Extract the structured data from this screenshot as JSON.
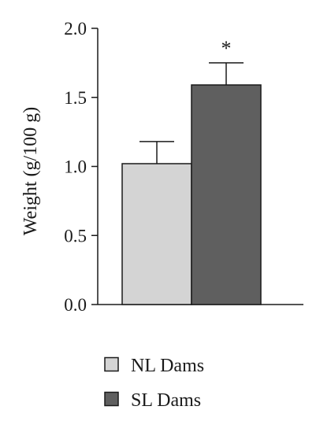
{
  "chart_data": {
    "type": "bar",
    "ylabel": "Weight (g/100 g)",
    "ylim": [
      0,
      2.0
    ],
    "yticks": [
      0.0,
      0.5,
      1.0,
      1.5,
      2.0
    ],
    "ytick_labels": [
      "0.0",
      "0.5",
      "1.0",
      "1.5",
      "2.0"
    ],
    "categories": [
      "NL Dams",
      "SL Dams"
    ],
    "values": [
      1.02,
      1.59
    ],
    "error_upper": [
      0.16,
      0.16
    ],
    "bar_colors": [
      "#d4d4d4",
      "#5f5f5f"
    ],
    "annotations": [
      {
        "category": "SL Dams",
        "text": "*"
      }
    ],
    "legend": {
      "position": "bottom",
      "entries": [
        {
          "label": "NL Dams",
          "color": "#d4d4d4"
        },
        {
          "label": "SL Dams",
          "color": "#5f5f5f"
        }
      ]
    },
    "grid": false
  }
}
